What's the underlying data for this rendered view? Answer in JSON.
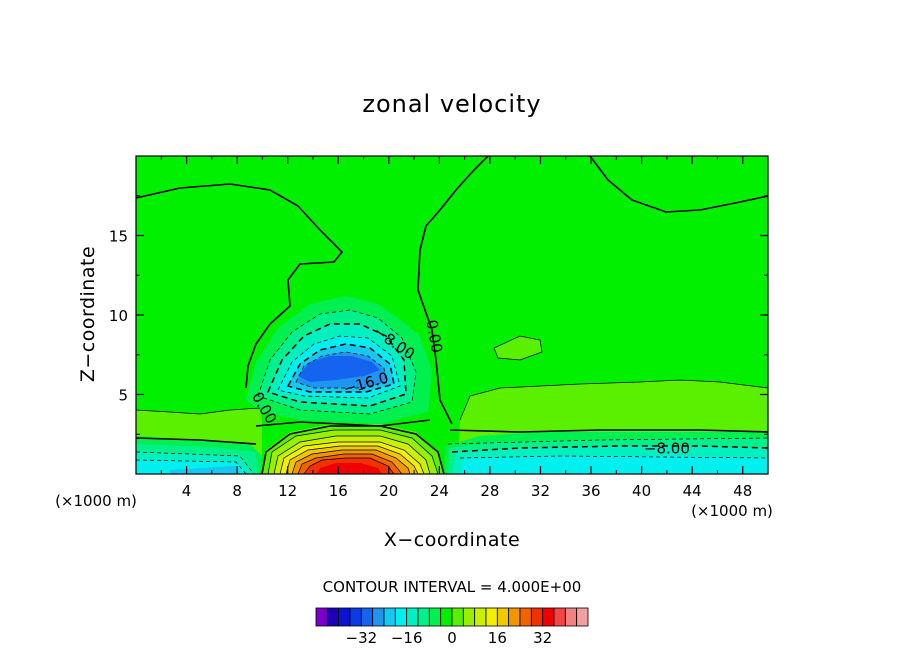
{
  "chart_data": {
    "type": "heatmap",
    "title": "zonal velocity",
    "xlabel": "X−coordinate",
    "ylabel": "Z−coordinate",
    "x_unit_left": "(×1000 m)",
    "x_unit_right": "(×1000 m)",
    "xlim": [
      0,
      50
    ],
    "ylim": [
      0,
      20
    ],
    "x_ticks": [
      4,
      8,
      12,
      16,
      20,
      24,
      28,
      32,
      36,
      40,
      44,
      48
    ],
    "y_ticks": [
      5,
      10,
      15
    ],
    "grid": false,
    "contour_interval_text": "CONTOUR INTERVAL = 4.000E+00",
    "contour_labels": [
      {
        "text": "0.00",
        "x": 23.2,
        "y": 8.6
      },
      {
        "text": "0.00",
        "x": 9.8,
        "y": 4.0
      },
      {
        "text": "−8.00",
        "x": 20.2,
        "y": 8.0
      },
      {
        "text": "−16.0",
        "x": 18.3,
        "y": 5.4
      },
      {
        "text": "−8.00",
        "x": 42.0,
        "y": 1.3
      }
    ],
    "colorbar": {
      "colors": [
        "#7a00c8",
        "#1e00b4",
        "#0a14d2",
        "#0a3ce6",
        "#1464f0",
        "#1e96f0",
        "#14c8f0",
        "#00f0f0",
        "#00f0c0",
        "#00f08c",
        "#00f050",
        "#00f000",
        "#5af000",
        "#96f000",
        "#c8f000",
        "#f0f000",
        "#f0c800",
        "#f09600",
        "#f06400",
        "#f03200",
        "#f00000",
        "#f04646",
        "#f08282",
        "#f0a0a0"
      ],
      "tick_labels": [
        "−32",
        "−16",
        "0",
        "16",
        "32"
      ],
      "tick_values": [
        -32,
        -16,
        0,
        16,
        32
      ],
      "min": -48,
      "max": 48
    },
    "features": [
      {
        "name": "negative jet core (upper)",
        "x": 17.5,
        "z": 6.8,
        "min_value": -20
      },
      {
        "name": "positive jet core (surface)",
        "x": 17.5,
        "z": 0.4,
        "max_value": 34
      },
      {
        "name": "near-surface easterlies west",
        "x": 6,
        "z": 0.3,
        "min_value": -16
      },
      {
        "name": "near-surface easterlies east",
        "x": 38,
        "z": 0.6,
        "min_value": -12
      }
    ]
  }
}
